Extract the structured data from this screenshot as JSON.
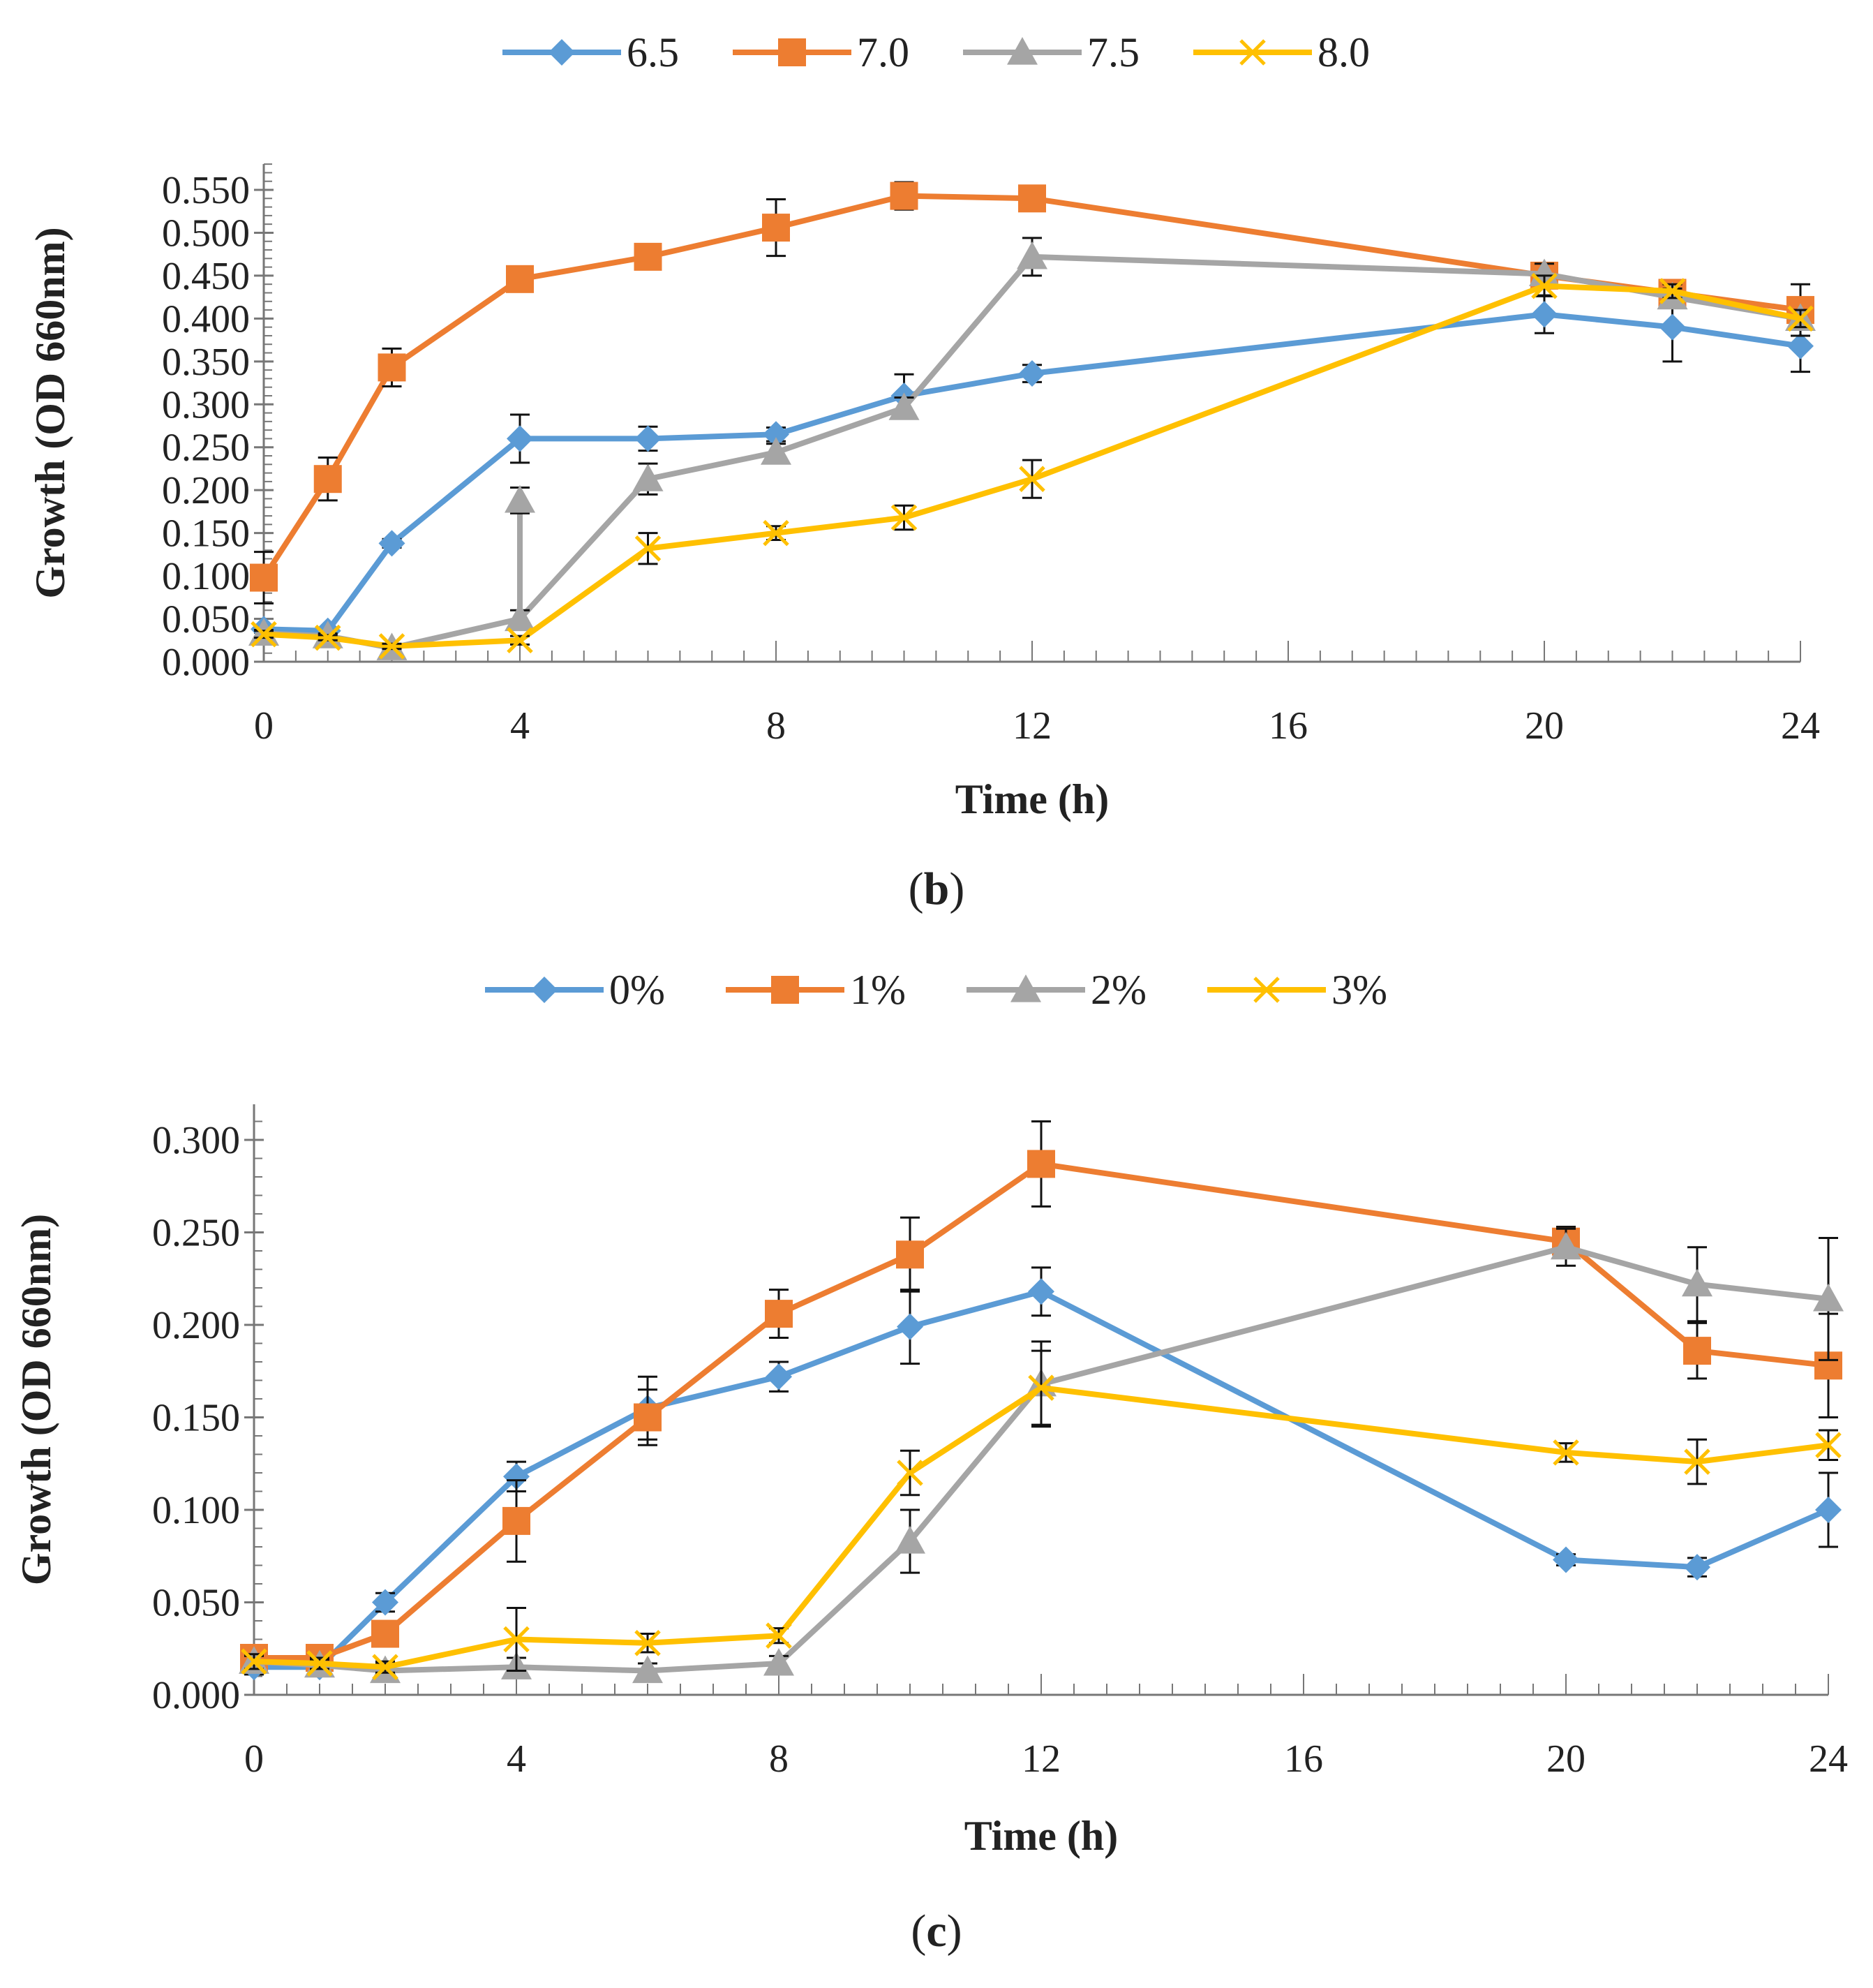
{
  "chart_data": [
    {
      "panel_label": "b",
      "type": "line",
      "title": "",
      "xlabel": "Time (h)",
      "ylabel": "Growth (OD 660nm)",
      "xlim": [
        0,
        24
      ],
      "ylim": [
        0,
        0.55
      ],
      "x_ticks": [
        "0",
        "4",
        "8",
        "12",
        "16",
        "20",
        "24"
      ],
      "y_ticks": [
        "0.000",
        "0.050",
        "0.100",
        "0.150",
        "0.200",
        "0.250",
        "0.300",
        "0.350",
        "0.400",
        "0.450",
        "0.500",
        "0.550"
      ],
      "legend_position": "top-center",
      "x": [
        0,
        1,
        2,
        4,
        6,
        8,
        10,
        12,
        20,
        22,
        24
      ],
      "series": [
        {
          "name": "6.5",
          "color": "#5B9BD5",
          "marker": "diamond",
          "values": [
            0.038,
            0.036,
            0.138,
            0.26,
            0.26,
            0.265,
            0.31,
            0.336,
            0.405,
            0.39,
            0.368
          ],
          "errors": [
            0.004,
            0.003,
            0.005,
            0.028,
            0.014,
            0.008,
            0.025,
            0.01,
            0.022,
            0.04,
            0.03
          ]
        },
        {
          "name": "7.0",
          "color": "#ED7D31",
          "marker": "square",
          "values": [
            0.098,
            0.213,
            0.343,
            0.446,
            0.472,
            0.506,
            0.543,
            0.54,
            0.45,
            0.43,
            0.41
          ],
          "errors": [
            0.03,
            0.025,
            0.022,
            0.008,
            0.008,
            0.033,
            0.016,
            0.01,
            0.014,
            0.01,
            0.03
          ]
        },
        {
          "name": "7.5",
          "color": "#A5A5A5",
          "marker": "triangle",
          "values": [
            0.033,
            0.03,
            0.016,
            0.05,
            0.213,
            0.244,
            0.296,
            0.472,
            0.452,
            0.425,
            0.4
          ],
          "errors": [
            0.004,
            0.003,
            0.003,
            0.01,
            0.018,
            0.01,
            0.012,
            0.022,
            0.012,
            0.01,
            0.01
          ],
          "extra": [
            {
              "x": 4,
              "y": 0.188,
              "error": 0.015
            }
          ]
        },
        {
          "name": "8.0",
          "color": "#FFC000",
          "marker": "x",
          "values": [
            0.032,
            0.028,
            0.018,
            0.025,
            0.132,
            0.15,
            0.168,
            0.213,
            0.438,
            0.432,
            0.4
          ],
          "errors": [
            0.004,
            0.003,
            0.003,
            0.005,
            0.018,
            0.008,
            0.014,
            0.022,
            0.012,
            0.008,
            0.01
          ]
        }
      ]
    },
    {
      "panel_label": "c",
      "type": "line",
      "title": "",
      "xlabel": "Time (h)",
      "ylabel": "Growth (OD 660nm)",
      "xlim": [
        0,
        24
      ],
      "ylim": [
        0,
        0.3
      ],
      "x_ticks": [
        "0",
        "4",
        "8",
        "12",
        "16",
        "20",
        "24"
      ],
      "y_ticks": [
        "0.000",
        "0.050",
        "0.100",
        "0.150",
        "0.200",
        "0.250",
        "0.300"
      ],
      "legend_position": "top-center",
      "x": [
        0,
        1,
        2,
        4,
        6,
        8,
        10,
        12,
        20,
        22,
        24
      ],
      "series": [
        {
          "name": "0%",
          "color": "#5B9BD5",
          "marker": "diamond",
          "values": [
            0.015,
            0.015,
            0.05,
            0.118,
            0.155,
            0.172,
            0.199,
            0.218,
            0.073,
            0.069,
            0.1
          ],
          "errors": [
            0.004,
            0.003,
            0.005,
            0.008,
            0.017,
            0.008,
            0.02,
            0.013,
            0.003,
            0.005,
            0.02
          ]
        },
        {
          "name": "1%",
          "color": "#ED7D31",
          "marker": "square",
          "values": [
            0.02,
            0.02,
            0.033,
            0.094,
            0.15,
            0.206,
            0.238,
            0.287,
            0.245,
            0.186,
            0.178
          ],
          "errors": [
            0.004,
            0.003,
            0.005,
            0.022,
            0.015,
            0.013,
            0.02,
            0.023,
            0.008,
            0.015,
            0.028
          ]
        },
        {
          "name": "2%",
          "color": "#A5A5A5",
          "marker": "triangle",
          "values": [
            0.018,
            0.016,
            0.013,
            0.015,
            0.013,
            0.017,
            0.083,
            0.168,
            0.242,
            0.222,
            0.214
          ],
          "errors": [
            0.003,
            0.003,
            0.004,
            0.005,
            0.004,
            0.004,
            0.017,
            0.023,
            0.01,
            0.02,
            0.033
          ]
        },
        {
          "name": "3%",
          "color": "#FFC000",
          "marker": "x",
          "values": [
            0.018,
            0.017,
            0.015,
            0.03,
            0.028,
            0.032,
            0.12,
            0.166,
            0.131,
            0.126,
            0.135
          ],
          "errors": [
            0.004,
            0.003,
            0.003,
            0.017,
            0.005,
            0.004,
            0.012,
            0.02,
            0.005,
            0.012,
            0.008
          ]
        }
      ]
    }
  ]
}
